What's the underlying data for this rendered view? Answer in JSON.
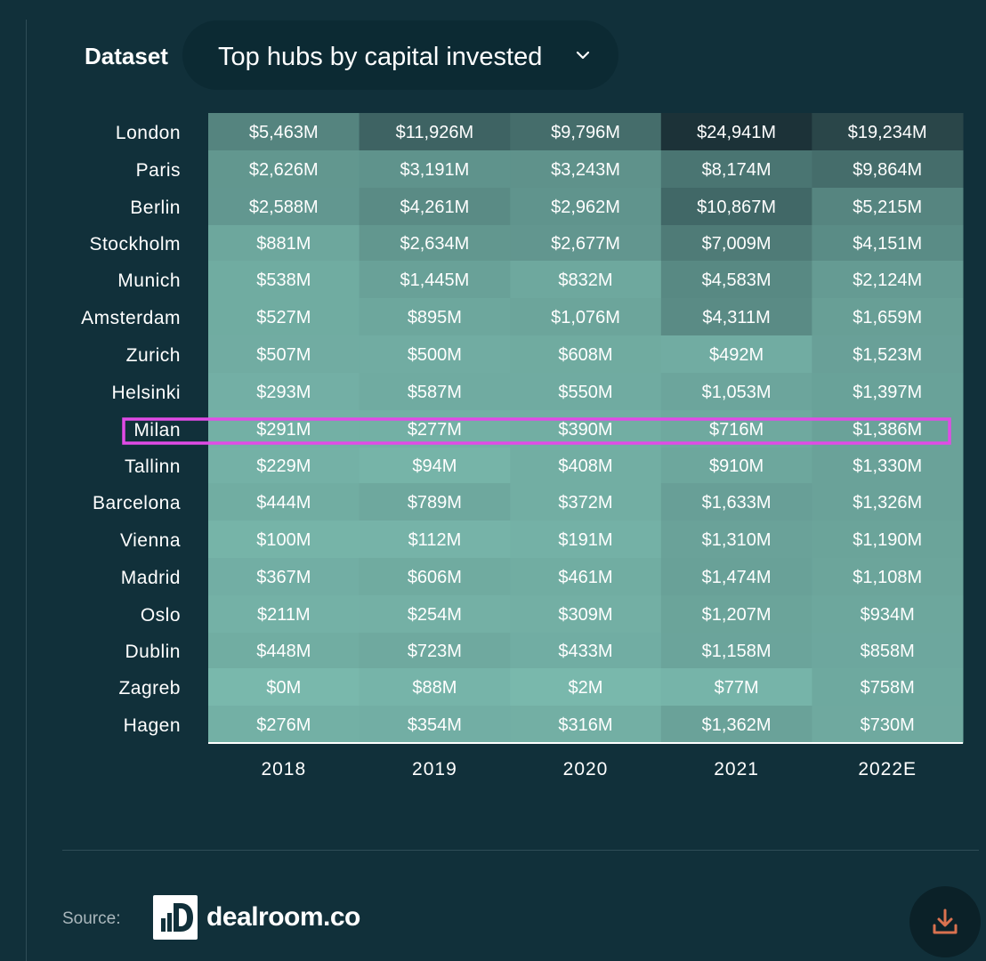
{
  "dataset": {
    "label": "Dataset",
    "selected": "Top hubs by capital invested"
  },
  "chart_data": {
    "type": "heatmap",
    "rows": [
      "London",
      "Paris",
      "Berlin",
      "Stockholm",
      "Munich",
      "Amsterdam",
      "Zurich",
      "Helsinki",
      "Milan",
      "Tallinn",
      "Barcelona",
      "Vienna",
      "Madrid",
      "Oslo",
      "Dublin",
      "Zagreb",
      "Hagen"
    ],
    "columns": [
      "2018",
      "2019",
      "2020",
      "2021",
      "2022E"
    ],
    "values": [
      [
        5463,
        11926,
        9796,
        24941,
        19234
      ],
      [
        2626,
        3191,
        3243,
        8174,
        9864
      ],
      [
        2588,
        4261,
        2962,
        10867,
        5215
      ],
      [
        881,
        2634,
        2677,
        7009,
        4151
      ],
      [
        538,
        1445,
        832,
        4583,
        2124
      ],
      [
        527,
        895,
        1076,
        4311,
        1659
      ],
      [
        507,
        500,
        608,
        492,
        1523
      ],
      [
        293,
        587,
        550,
        1053,
        1397
      ],
      [
        291,
        277,
        390,
        716,
        1386
      ],
      [
        229,
        94,
        408,
        910,
        1330
      ],
      [
        444,
        789,
        372,
        1633,
        1326
      ],
      [
        100,
        112,
        191,
        1310,
        1190
      ],
      [
        367,
        606,
        461,
        1474,
        1108
      ],
      [
        211,
        254,
        309,
        1207,
        934
      ],
      [
        448,
        723,
        433,
        1158,
        858
      ],
      [
        0,
        88,
        2,
        77,
        758
      ],
      [
        276,
        354,
        316,
        1362,
        730
      ]
    ],
    "labels": [
      [
        "$5,463M",
        "$11,926M",
        "$9,796M",
        "$24,941M",
        "$19,234M"
      ],
      [
        "$2,626M",
        "$3,191M",
        "$3,243M",
        "$8,174M",
        "$9,864M"
      ],
      [
        "$2,588M",
        "$4,261M",
        "$2,962M",
        "$10,867M",
        "$5,215M"
      ],
      [
        "$881M",
        "$2,634M",
        "$2,677M",
        "$7,009M",
        "$4,151M"
      ],
      [
        "$538M",
        "$1,445M",
        "$832M",
        "$4,583M",
        "$2,124M"
      ],
      [
        "$527M",
        "$895M",
        "$1,076M",
        "$4,311M",
        "$1,659M"
      ],
      [
        "$507M",
        "$500M",
        "$608M",
        "$492M",
        "$1,523M"
      ],
      [
        "$293M",
        "$587M",
        "$550M",
        "$1,053M",
        "$1,397M"
      ],
      [
        "$291M",
        "$277M",
        "$390M",
        "$716M",
        "$1,386M"
      ],
      [
        "$229M",
        "$94M",
        "$408M",
        "$910M",
        "$1,330M"
      ],
      [
        "$444M",
        "$789M",
        "$372M",
        "$1,633M",
        "$1,326M"
      ],
      [
        "$100M",
        "$112M",
        "$191M",
        "$1,310M",
        "$1,190M"
      ],
      [
        "$367M",
        "$606M",
        "$461M",
        "$1,474M",
        "$1,108M"
      ],
      [
        "$211M",
        "$254M",
        "$309M",
        "$1,207M",
        "$934M"
      ],
      [
        "$448M",
        "$723M",
        "$433M",
        "$1,158M",
        "$858M"
      ],
      [
        "$0M",
        "$88M",
        "$2M",
        "$77M",
        "$758M"
      ],
      [
        "$276M",
        "$354M",
        "$316M",
        "$1,362M",
        "$730M"
      ]
    ],
    "highlighted_row": "Milan",
    "colors": {
      "low": "#79b8ac",
      "high": "#1c3238",
      "highlight": "#e14be6"
    }
  },
  "footer": {
    "source_label": "Source:",
    "logo_text": "dealroom.co"
  },
  "icons": {
    "dropdown": "chevron-down-icon",
    "logo": "dealroom-logo-icon",
    "download": "download-icon"
  }
}
